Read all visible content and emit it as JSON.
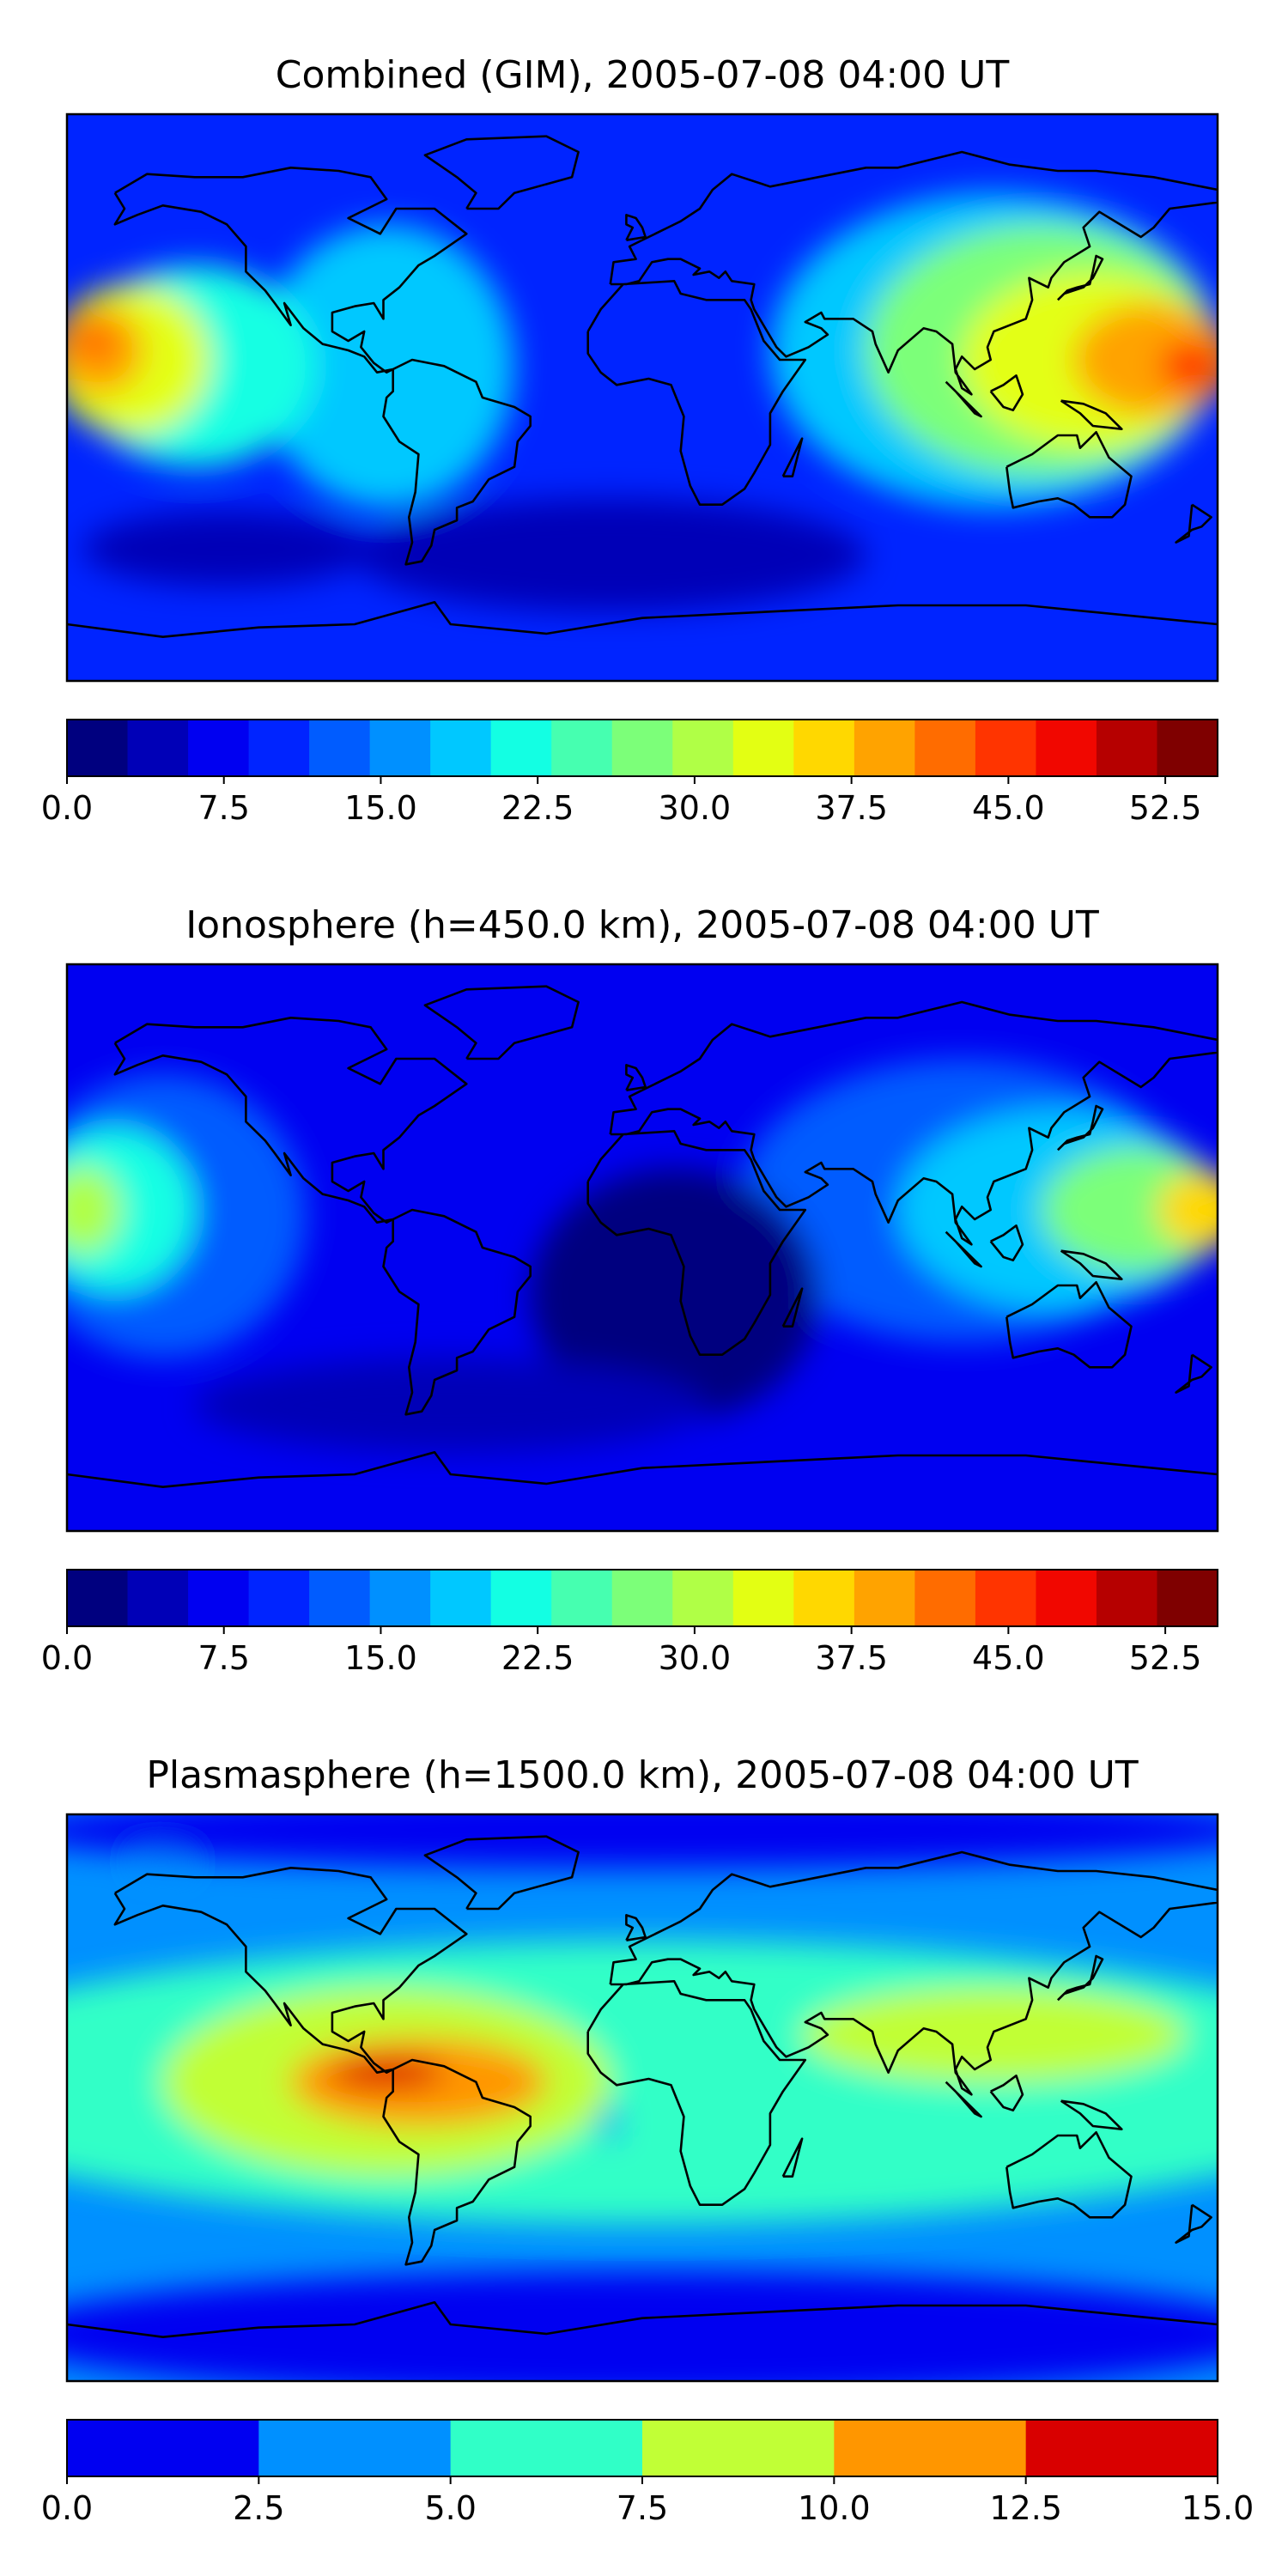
{
  "panels": [
    {
      "title": "Combined (GIM), 2005-07-08 04:00 UT",
      "colorbar": {
        "colors": [
          "#00007f",
          "#0000b7",
          "#0000f1",
          "#0024ff",
          "#005cff",
          "#0090ff",
          "#00c8ff",
          "#13ffe3",
          "#46ffb0",
          "#7cff79",
          "#b0ff46",
          "#e3ff13",
          "#ffd800",
          "#ffa300",
          "#ff6c00",
          "#ff3400",
          "#f10700",
          "#b60000",
          "#7f0000"
        ],
        "tick_labels": [
          "0.0",
          "7.5",
          "15.0",
          "22.5",
          "30.0",
          "37.5",
          "45.0",
          "52.5"
        ],
        "ticks": [
          0,
          7.5,
          15,
          22.5,
          30,
          37.5,
          45,
          52.5
        ],
        "range": [
          0,
          55
        ]
      },
      "regions": [
        {
          "value": 18,
          "lon": -80,
          "lat": 10,
          "r_lon": 40,
          "r_lat": 45
        },
        {
          "value": 22,
          "lon": -140,
          "lat": 10,
          "r_lon": 38,
          "r_lat": 32
        },
        {
          "value": 33,
          "lon": -160,
          "lat": 12,
          "r_lon": 25,
          "r_lat": 24
        },
        {
          "value": 40,
          "lon": -170,
          "lat": 15,
          "r_lon": 14,
          "r_lat": 14
        },
        {
          "value": 43,
          "lon": -172,
          "lat": 18,
          "r_lon": 8,
          "r_lat": 6
        },
        {
          "value": 20,
          "lon": 110,
          "lat": 15,
          "r_lon": 70,
          "r_lat": 50
        },
        {
          "value": 28,
          "lon": 125,
          "lat": 15,
          "r_lon": 55,
          "r_lat": 40
        },
        {
          "value": 34,
          "lon": 140,
          "lat": 12,
          "r_lon": 40,
          "r_lat": 28
        },
        {
          "value": 40,
          "lon": 160,
          "lat": 12,
          "r_lon": 25,
          "r_lat": 18
        },
        {
          "value": 46,
          "lon": 172,
          "lat": 10,
          "r_lon": 10,
          "r_lat": 8
        },
        {
          "value": 5,
          "lon": -10,
          "lat": -50,
          "r_lon": 80,
          "r_lat": 18
        },
        {
          "value": 3,
          "lon": -130,
          "lat": -48,
          "r_lon": 45,
          "r_lat": 12
        }
      ]
    },
    {
      "title": "Ionosphere  (h=450.0 km), 2005-07-08 04:00 UT",
      "colorbar": {
        "colors": [
          "#00007f",
          "#0000b7",
          "#0000f1",
          "#0024ff",
          "#005cff",
          "#0090ff",
          "#00c8ff",
          "#13ffe3",
          "#46ffb0",
          "#7cff79",
          "#b0ff46",
          "#e3ff13",
          "#ffd800",
          "#ffa300",
          "#ff6c00",
          "#ff3400",
          "#f10700",
          "#b60000",
          "#7f0000"
        ],
        "tick_labels": [
          "0.0",
          "7.5",
          "15.0",
          "22.5",
          "30.0",
          "37.5",
          "45.0",
          "52.5"
        ],
        "ticks": [
          0,
          7.5,
          15,
          22.5,
          30,
          37.5,
          45,
          52.5
        ],
        "range": [
          0,
          55
        ]
      },
      "regions": [
        {
          "value": 13,
          "lon": -150,
          "lat": 10,
          "r_lon": 45,
          "r_lat": 45
        },
        {
          "value": 22,
          "lon": -165,
          "lat": 12,
          "r_lon": 25,
          "r_lat": 26
        },
        {
          "value": 30,
          "lon": -175,
          "lat": 12,
          "r_lon": 12,
          "r_lat": 14
        },
        {
          "value": 13,
          "lon": 100,
          "lat": 15,
          "r_lon": 70,
          "r_lat": 45
        },
        {
          "value": 20,
          "lon": 130,
          "lat": 12,
          "r_lon": 50,
          "r_lat": 32
        },
        {
          "value": 27,
          "lon": 155,
          "lat": 12,
          "r_lon": 30,
          "r_lat": 20
        },
        {
          "value": 35,
          "lon": 175,
          "lat": 12,
          "r_lon": 14,
          "r_lat": 12
        },
        {
          "value": 1,
          "lon": 10,
          "lat": -15,
          "r_lon": 45,
          "r_lat": 40
        },
        {
          "value": 3,
          "lon": -60,
          "lat": -50,
          "r_lon": 80,
          "r_lat": 15
        }
      ]
    },
    {
      "title": "Plasmasphere (h=1500.0 km), 2005-07-08 04:00 UT",
      "colorbar": {
        "colors": [
          "#0000f1",
          "#0090ff",
          "#30ffc7",
          "#c1ff36",
          "#ff9600",
          "#d90000"
        ],
        "tick_labels": [
          "0.0",
          "2.5",
          "5.0",
          "7.5",
          "10.0",
          "12.5",
          "15.0"
        ],
        "ticks": [
          0,
          2.5,
          5,
          7.5,
          10,
          12.5,
          15
        ],
        "range": [
          0,
          15
        ]
      },
      "regions": [
        {
          "value": 6,
          "lon": 0,
          "lat": 5,
          "r_lon": 240,
          "r_lat": 45
        },
        {
          "value": 8,
          "lon": -80,
          "lat": 5,
          "r_lon": 70,
          "r_lat": 30
        },
        {
          "value": 8,
          "lon": 110,
          "lat": 20,
          "r_lon": 60,
          "r_lat": 15
        },
        {
          "value": 11,
          "lon": -70,
          "lat": 5,
          "r_lon": 40,
          "r_lat": 14
        },
        {
          "value": 13,
          "lon": -80,
          "lat": 8,
          "r_lon": 18,
          "r_lat": 5
        },
        {
          "value": 3.5,
          "lon": -10,
          "lat": -8,
          "r_lon": 3,
          "r_lat": 6
        },
        {
          "value": 3.5,
          "lon": -150,
          "lat": 75,
          "r_lon": 8,
          "r_lat": 3
        },
        {
          "value": 1,
          "lon": 0,
          "lat": 85,
          "r_lon": 200,
          "r_lat": 12
        },
        {
          "value": 1,
          "lon": 0,
          "lat": -75,
          "r_lon": 200,
          "r_lat": 20
        }
      ]
    }
  ]
}
